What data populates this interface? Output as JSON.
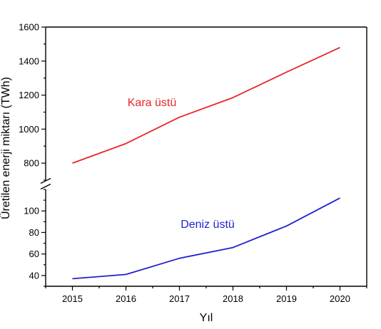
{
  "chart_data": {
    "type": "line",
    "title": "",
    "xlabel": "Yıl",
    "ylabel": "Üretilen enerji miktarı (TWh)",
    "x": [
      2015,
      2016,
      2017,
      2018,
      2019,
      2020
    ],
    "xlim": [
      2014.5,
      2020.5
    ],
    "y_axis_break": true,
    "y_segments": [
      {
        "ylim": [
          700,
          1600
        ],
        "ticks": [
          800,
          1000,
          1200,
          1400,
          1600
        ]
      },
      {
        "ylim": [
          30,
          120
        ],
        "ticks": [
          40,
          60,
          80,
          100
        ]
      }
    ],
    "grid": false,
    "legend": "inline labels",
    "series": [
      {
        "name": "Kara üstü",
        "color": "#e8262a",
        "segment": 0,
        "values": [
          800,
          915,
          1070,
          1185,
          1335,
          1480
        ]
      },
      {
        "name": "Deniz üstü",
        "color": "#1f1fd0",
        "segment": 1,
        "values": [
          37,
          41,
          56,
          66,
          86,
          112
        ]
      }
    ]
  }
}
